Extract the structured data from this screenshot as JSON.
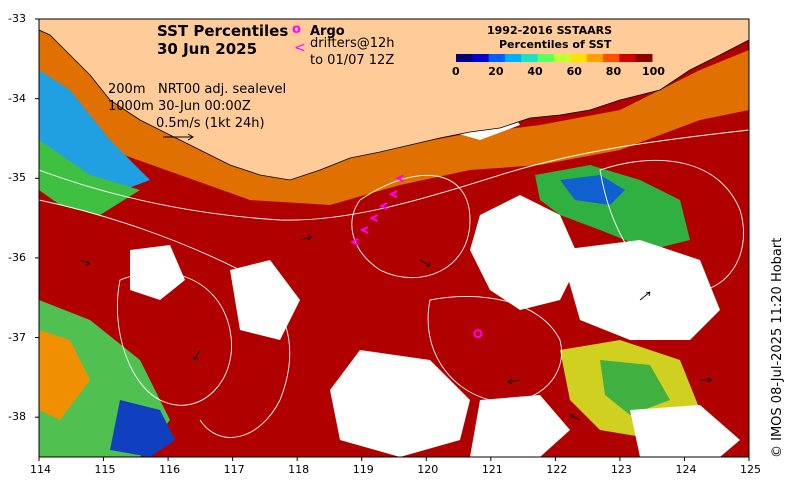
{
  "title": {
    "line1": "SST Percentiles",
    "line2": "30 Jun 2025"
  },
  "legend_markers": {
    "argo_symbol": "o",
    "argo_label": "Argo",
    "drifter_symbol": "<",
    "drifter_label_line1": "drifters@12h",
    "drifter_label_line2": "to 01/07 12Z"
  },
  "colorbar": {
    "title_line1": "1992-2016 SSTAARS",
    "title_line2": "Percentiles of SST",
    "ticks": [
      "0",
      "20",
      "40",
      "60",
      "80",
      "100"
    ],
    "colors": [
      "#00007f",
      "#0000d0",
      "#0060ff",
      "#00b0ff",
      "#20e0c0",
      "#60ff60",
      "#c0ff30",
      "#ffe000",
      "#ffa000",
      "#ff5000",
      "#d00000",
      "#8b0000"
    ]
  },
  "contour_notes": {
    "line1_depth": "200m",
    "line1_text": "NRT00 adj. sealevel",
    "line2_depth": "1000m",
    "line2_text": "30-Jun 00:00Z",
    "scale_text": "0.5m/s (1kt 24h)"
  },
  "credit": "© IMOS 08-Jul-2025 11:20 Hobart",
  "axes": {
    "x_ticks": [
      "114",
      "115",
      "116",
      "117",
      "118",
      "119",
      "120",
      "121",
      "122",
      "123",
      "124",
      "125"
    ],
    "y_ticks": [
      "-33",
      "-34",
      "-35",
      "-36",
      "-37",
      "-38"
    ],
    "lon_range": [
      114,
      125
    ],
    "lat_range": [
      -38.5,
      -33
    ]
  },
  "map": {
    "land_color": "#ffcc99",
    "nodata_color": "#ffffff",
    "contour_color": "#ffffff",
    "argo_color": "#ff00ff",
    "drifter_color": "#ff00ff",
    "argo_position": {
      "lon": 120.8,
      "lat": -36.95
    },
    "drifter_track": [
      {
        "lon": 119.6,
        "lat": -35.0
      },
      {
        "lon": 119.5,
        "lat": -35.2
      },
      {
        "lon": 119.35,
        "lat": -35.35
      },
      {
        "lon": 119.2,
        "lat": -35.5
      },
      {
        "lon": 119.05,
        "lat": -35.65
      },
      {
        "lon": 118.9,
        "lat": -35.8
      }
    ]
  }
}
